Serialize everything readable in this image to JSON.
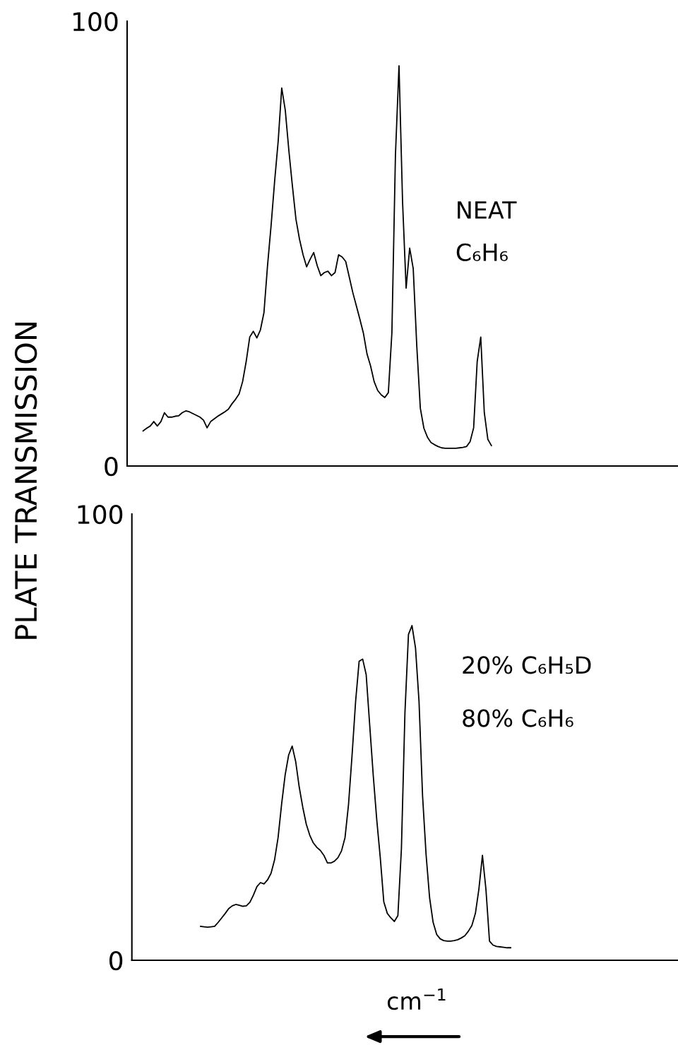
{
  "chart_data": [
    {
      "type": "line",
      "ylabel": "PLATE TRANSMISSION",
      "annotations": [
        "NEAT",
        "C₆H₆"
      ],
      "categories": [
        null,
        null,
        null,
        null,
        null,
        null,
        null,
        null,
        null,
        null,
        null,
        null,
        null,
        null,
        null,
        null,
        null,
        null,
        null,
        null,
        null,
        null,
        null,
        null,
        null,
        null,
        null,
        null,
        null,
        null,
        null,
        null,
        null,
        null,
        null,
        null,
        null,
        null,
        null,
        null,
        null,
        null,
        null,
        null,
        null,
        null,
        null,
        null,
        null,
        null,
        null,
        null,
        null,
        null,
        null,
        null,
        null,
        null,
        null,
        null,
        null,
        null,
        null,
        null,
        null,
        null,
        null,
        null,
        null,
        null,
        null,
        null,
        null,
        null,
        null,
        null,
        null,
        null,
        null,
        null,
        null,
        null,
        null,
        null,
        null,
        null,
        null,
        null,
        null,
        null,
        null,
        null,
        null,
        null,
        null,
        null,
        null,
        null,
        null,
        null,
        null,
        null,
        null,
        null,
        null,
        null,
        null,
        null,
        null,
        null,
        null,
        null,
        null,
        null,
        null,
        null,
        null,
        null,
        null,
        null,
        null,
        null,
        null,
        null,
        null,
        null,
        null,
        null,
        null,
        null,
        null,
        null,
        null,
        null,
        null,
        null,
        null,
        null,
        null,
        null,
        null,
        null,
        null,
        null,
        null,
        null,
        null,
        null,
        null,
        null,
        null,
        null,
        null,
        null,
        null
      ],
      "series": [
        {
          "color": "#000000",
          "values": [
            null,
            null,
            null,
            null,
            7.9,
            8.5,
            9,
            10,
            9,
            10,
            12,
            11,
            11,
            11.2,
            11.3,
            12,
            12.4,
            12.2,
            11.8,
            11.4,
            11,
            10.3,
            8.6,
            10,
            10.6,
            11.2,
            11.7,
            12.2,
            12.8,
            14,
            15,
            16.2,
            19,
            23.5,
            29,
            30.3,
            28.8,
            30.6,
            34.5,
            45,
            54,
            64,
            73,
            85,
            80,
            71,
            63,
            55.5,
            51,
            47.5,
            44.8,
            46.5,
            48,
            45,
            42.8,
            43.5,
            43.8,
            42.8,
            43.5,
            47.5,
            47,
            46,
            42.5,
            39,
            36,
            33,
            29.8,
            25.2,
            22.5,
            19,
            17,
            16,
            15.4,
            16.5,
            30,
            70,
            90,
            59.4,
            40,
            49,
            44.4,
            27,
            13,
            8.5,
            6.5,
            5.3,
            4.8,
            4.4,
            4.1,
            4,
            4,
            4,
            4,
            4.1,
            4.2,
            4.4,
            5.5,
            8.6,
            23.5,
            29,
            12,
            6,
            4.6,
            null,
            null,
            null,
            null,
            null,
            null,
            null,
            null,
            null,
            null,
            null,
            null,
            null,
            null,
            null,
            null,
            null,
            null,
            null,
            null,
            null,
            null,
            null,
            null,
            null,
            null,
            null,
            null,
            null,
            null,
            null,
            null,
            null,
            null,
            null,
            null,
            null,
            null,
            null,
            null,
            null,
            null,
            null,
            null,
            null,
            null,
            null,
            null,
            null,
            null,
            null,
            null
          ]
        }
      ],
      "ylim": [
        0,
        100
      ],
      "yticks": [
        0,
        100
      ],
      "tick_labels": "y",
      "grid": false,
      "legend": false
    },
    {
      "type": "line",
      "xlabel": "cm$^{−1}$",
      "annotations": [
        "20% C₆H₅D",
        "80% C₆H₆"
      ],
      "categories": [
        null,
        null,
        null,
        null,
        null,
        null,
        null,
        null,
        null,
        null,
        null,
        null,
        null,
        null,
        null,
        null,
        null,
        null,
        null,
        null,
        null,
        null,
        null,
        null,
        null,
        null,
        null,
        null,
        null,
        null,
        null,
        null,
        null,
        null,
        null,
        null,
        null,
        null,
        null,
        null,
        null,
        null,
        null,
        null,
        null,
        null,
        null,
        null,
        null,
        null,
        null,
        null,
        null,
        null,
        null,
        null,
        null,
        null,
        null,
        null,
        null,
        null,
        null,
        null,
        null,
        null,
        null,
        null,
        null,
        null,
        null,
        null,
        null,
        null,
        null,
        null,
        null,
        null,
        null,
        null,
        null,
        null,
        null,
        null,
        null,
        null,
        null,
        null,
        null,
        null,
        null,
        null,
        null,
        null,
        null,
        null,
        null,
        null,
        null,
        null,
        null,
        null,
        null,
        null,
        null,
        null,
        null,
        null,
        null,
        null,
        null,
        null,
        null,
        null,
        null,
        null,
        null,
        null,
        null,
        null,
        null,
        null,
        null,
        null,
        null,
        null,
        null,
        null,
        null,
        null,
        null,
        null,
        null,
        null,
        null,
        null,
        null,
        null,
        null,
        null,
        null,
        null,
        null,
        null,
        null,
        null,
        null,
        null,
        null,
        null,
        null,
        null,
        null,
        null,
        null
      ],
      "series": [
        {
          "color": "#000000",
          "values": [
            null,
            null,
            null,
            null,
            null,
            null,
            null,
            null,
            null,
            null,
            null,
            null,
            null,
            null,
            null,
            null,
            null,
            null,
            null,
            7.6,
            7.5,
            7.4,
            7.5,
            7.6,
            8.5,
            9.5,
            10.5,
            11.6,
            12.2,
            12.5,
            12.3,
            12.1,
            12.2,
            13,
            14.6,
            16.5,
            17.4,
            17.1,
            18,
            19.5,
            22.5,
            27.5,
            35,
            41.5,
            46,
            48,
            44.5,
            38.8,
            34.3,
            30.5,
            28,
            26.3,
            25.3,
            24.6,
            23.5,
            21.8,
            21.8,
            22.2,
            23,
            24.5,
            27.5,
            35,
            46,
            58,
            67,
            67.5,
            64,
            52.7,
            41.5,
            31.5,
            23,
            13.1,
            10.5,
            9.5,
            8.7,
            10,
            25,
            55.4,
            73,
            75,
            70,
            58,
            36.9,
            23.7,
            14,
            8.5,
            5.8,
            4.8,
            4.4,
            4.3,
            4.3,
            4.4,
            4.6,
            5,
            5.5,
            6.5,
            7.8,
            10.5,
            16,
            23.5,
            15.8,
            4.3,
            3.4,
            3.1,
            3,
            2.9,
            2.8,
            2.8,
            null,
            null,
            null,
            null,
            null,
            null,
            null,
            null,
            null,
            null,
            null,
            null,
            null,
            null,
            null,
            null,
            null,
            null,
            null,
            null,
            null,
            null,
            null,
            null,
            null,
            null,
            null,
            null,
            null,
            null,
            null,
            null,
            null,
            null,
            null,
            null,
            null,
            null,
            null,
            null,
            null,
            null,
            null,
            null,
            null,
            null,
            null
          ]
        }
      ],
      "ylim": [
        0,
        100
      ],
      "yticks": [
        0,
        100
      ],
      "tick_labels": "y",
      "grid": false,
      "legend": false
    }
  ]
}
